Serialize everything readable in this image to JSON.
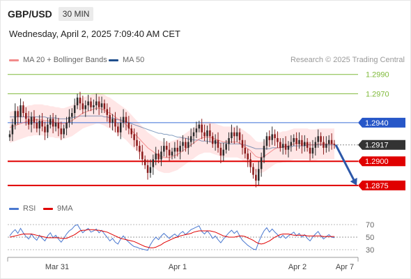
{
  "header": {
    "symbol": "GBP/USD",
    "timeframe": "30 MIN",
    "datetime": "Wednesday, April 2, 2025 7:09:40 AM CET"
  },
  "legend": {
    "ma20": "MA 20 + Bollinger Bands",
    "ma50": "MA 50",
    "rsi": "RSI",
    "rsi_ma": "9MA"
  },
  "copyright": "Research © 2025 Trading Central",
  "colors": {
    "ma20": "#f06060",
    "ma50": "#1f4e8c",
    "bands": "#ffd6d6",
    "up": "#2b2b2b",
    "down": "#8b1a1a",
    "resistance_green": "#7fba3a",
    "resistance_blue": "#3a6fd8",
    "support_red": "#e00000",
    "forecast_arrow": "#2c57a8",
    "current": "#333333"
  },
  "chart_data": [
    {
      "type": "candlestick",
      "title": "GBP/USD 30 MIN",
      "ylim": [
        1.2865,
        1.3005
      ],
      "x_labels": [
        "Mar 31",
        "Apr 1",
        "Apr 2",
        "Apr 7"
      ],
      "levels": [
        {
          "value": 1.299,
          "label": "1.2990",
          "style": "green"
        },
        {
          "value": 1.297,
          "label": "1.2970",
          "style": "green"
        },
        {
          "value": 1.294,
          "label": "1.2940",
          "style": "blue"
        },
        {
          "value": 1.2917,
          "label": "1.2917",
          "style": "current"
        },
        {
          "value": 1.29,
          "label": "1.2900",
          "style": "red"
        },
        {
          "value": 1.2875,
          "label": "1.2875",
          "style": "red"
        }
      ],
      "closes": [
        1.2928,
        1.2938,
        1.2952,
        1.2946,
        1.2958,
        1.295,
        1.2944,
        1.2938,
        1.2946,
        1.294,
        1.2934,
        1.2942,
        1.2936,
        1.293,
        1.2938,
        1.2944,
        1.2936,
        1.294,
        1.2934,
        1.2928,
        1.2934,
        1.294,
        1.2946,
        1.295,
        1.2958,
        1.2966,
        1.296,
        1.2954,
        1.2958,
        1.2962,
        1.2956,
        1.2958,
        1.2962,
        1.2956,
        1.296,
        1.2954,
        1.2948,
        1.294,
        1.2944,
        1.2936,
        1.293,
        1.294,
        1.2946,
        1.294,
        1.2934,
        1.2928,
        1.2922,
        1.2916,
        1.291,
        1.2902,
        1.2896,
        1.2888,
        1.2894,
        1.2902,
        1.2908,
        1.2902,
        1.291,
        1.2916,
        1.2912,
        1.2906,
        1.291,
        1.2914,
        1.291,
        1.2916,
        1.292,
        1.2914,
        1.292,
        1.2926,
        1.293,
        1.2934,
        1.2938,
        1.293,
        1.2926,
        1.2932,
        1.2926,
        1.2918,
        1.2922,
        1.2914,
        1.2906,
        1.2912,
        1.2918,
        1.2924,
        1.293,
        1.2926,
        1.293,
        1.2922,
        1.2914,
        1.2908,
        1.2902,
        1.2894,
        1.2886,
        1.288,
        1.2892,
        1.2904,
        1.2916,
        1.2926,
        1.2922,
        1.2928,
        1.2924,
        1.292,
        1.2914,
        1.2918,
        1.2912,
        1.2916,
        1.292,
        1.2924,
        1.2918,
        1.2922,
        1.2916,
        1.292,
        1.2914,
        1.2908,
        1.2914,
        1.292,
        1.2926,
        1.292,
        1.2914,
        1.2918,
        1.2922,
        1.2918,
        1.2917
      ],
      "ma20": [
        1.2935,
        1.2936,
        1.2937,
        1.2938,
        1.2939,
        1.294,
        1.2941,
        1.2942,
        1.2942,
        1.2943,
        1.2943,
        1.2943,
        1.2943,
        1.2942,
        1.2942,
        1.2941,
        1.2941,
        1.294,
        1.294,
        1.2939,
        1.2939,
        1.294,
        1.2941,
        1.2942,
        1.2944,
        1.2946,
        1.2948,
        1.295,
        1.2951,
        1.2952,
        1.2953,
        1.2954,
        1.2955,
        1.2955,
        1.2954,
        1.2953,
        1.2951,
        1.295,
        1.2948,
        1.2946,
        1.2944,
        1.2942,
        1.294,
        1.2938,
        1.2935,
        1.2932,
        1.2929,
        1.2926,
        1.2923,
        1.292,
        1.2917,
        1.2914,
        1.2912,
        1.291,
        1.2908,
        1.2906,
        1.2905,
        1.2904,
        1.2904,
        1.2904,
        1.2905,
        1.2906,
        1.2907,
        1.2909,
        1.2911,
        1.2913,
        1.2915,
        1.2917,
        1.2919,
        1.2921,
        1.2923,
        1.2924,
        1.2925,
        1.2925,
        1.2925,
        1.2924,
        1.2923,
        1.2922,
        1.2921,
        1.292,
        1.292,
        1.292,
        1.292,
        1.292,
        1.292,
        1.2919,
        1.2917,
        1.2915,
        1.2913,
        1.2911,
        1.2908,
        1.2905,
        1.2904,
        1.2904,
        1.2905,
        1.2907,
        1.2909,
        1.2911,
        1.2913,
        1.2914,
        1.2914,
        1.2915,
        1.2915,
        1.2916,
        1.2917,
        1.2918,
        1.2918,
        1.2918,
        1.2918,
        1.2918,
        1.2918,
        1.2917,
        1.2917,
        1.2917,
        1.2918,
        1.2918,
        1.2918,
        1.2918,
        1.2918,
        1.2918,
        1.2918
      ],
      "ma50": [
        1.2946,
        1.2946,
        1.2946,
        1.2946,
        1.2946,
        1.2946,
        1.2946,
        1.2946,
        1.2946,
        1.2946,
        1.2946,
        1.2946,
        1.2946,
        1.2946,
        1.2945,
        1.2945,
        1.2945,
        1.2945,
        1.2944,
        1.2944,
        1.2944,
        1.2944,
        1.2945,
        1.2945,
        1.2946,
        1.2946,
        1.2947,
        1.2947,
        1.2947,
        1.2947,
        1.2947,
        1.2947,
        1.2947,
        1.2947,
        1.2947,
        1.2946,
        1.2946,
        1.2945,
        1.2945,
        1.2944,
        1.2943,
        1.2943,
        1.2942,
        1.2941,
        1.294,
        1.2939,
        1.2938,
        1.2937,
        1.2936,
        1.2935,
        1.2934,
        1.2933,
        1.2932,
        1.2931,
        1.293,
        1.2929,
        1.2929,
        1.2928,
        1.2928,
        1.2927,
        1.2927,
        1.2926,
        1.2925,
        1.2925,
        1.2924,
        1.2924,
        1.2923,
        1.2923,
        1.2922,
        1.2922,
        1.2922,
        1.2921,
        1.2921,
        1.2921,
        1.292,
        1.292,
        1.292,
        1.2919,
        1.2919,
        1.2919,
        1.2919,
        1.2918,
        1.2918,
        1.2918,
        1.2918,
        1.2918,
        1.2917,
        1.2917,
        1.2916,
        1.2915,
        1.2914,
        1.2913,
        1.2913,
        1.2913,
        1.2913,
        1.2913,
        1.2913,
        1.2914,
        1.2914,
        1.2914,
        1.2914,
        1.2915,
        1.2915,
        1.2915,
        1.2915,
        1.2916,
        1.2916,
        1.2916,
        1.2916,
        1.2916,
        1.2917,
        1.2917,
        1.2917,
        1.2917,
        1.2917,
        1.2917,
        1.2917,
        1.2917,
        1.2917,
        1.2917,
        1.2917
      ],
      "forecast": [
        1.2917,
        1.2875
      ]
    },
    {
      "type": "line",
      "title": "RSI",
      "ylim": [
        25,
        75
      ],
      "y_ticks": [
        70,
        50,
        30
      ],
      "series": [
        {
          "name": "RSI",
          "values": [
            52,
            58,
            62,
            56,
            64,
            57,
            51,
            47,
            55,
            49,
            45,
            53,
            48,
            44,
            52,
            57,
            49,
            53,
            47,
            42,
            48,
            55,
            60,
            63,
            68,
            70,
            63,
            57,
            61,
            64,
            58,
            60,
            63,
            57,
            61,
            55,
            50,
            44,
            48,
            42,
            39,
            47,
            52,
            46,
            42,
            38,
            35,
            34,
            32,
            31,
            30,
            29,
            38,
            45,
            50,
            46,
            52,
            56,
            52,
            48,
            52,
            55,
            51,
            56,
            59,
            54,
            58,
            62,
            64,
            66,
            68,
            59,
            55,
            60,
            55,
            48,
            52,
            46,
            41,
            47,
            52,
            57,
            61,
            56,
            60,
            52,
            45,
            41,
            37,
            34,
            31,
            30,
            42,
            52,
            60,
            65,
            58,
            63,
            58,
            54,
            49,
            53,
            48,
            52,
            55,
            58,
            52,
            56,
            50,
            54,
            48,
            44,
            50,
            55,
            59,
            52,
            47,
            51,
            54,
            50,
            49
          ]
        },
        {
          "name": "9MA",
          "values": [
            50,
            51,
            52,
            53,
            54,
            55,
            55,
            55,
            55,
            54,
            53,
            52,
            51,
            50,
            49,
            49,
            49,
            49,
            49,
            48,
            48,
            48,
            50,
            52,
            54,
            57,
            60,
            61,
            61,
            62,
            62,
            62,
            61,
            61,
            60,
            59,
            58,
            56,
            54,
            52,
            50,
            48,
            47,
            46,
            45,
            44,
            43,
            41,
            39,
            37,
            35,
            34,
            33,
            33,
            34,
            36,
            38,
            41,
            43,
            45,
            47,
            49,
            50,
            52,
            53,
            54,
            55,
            56,
            58,
            59,
            60,
            60,
            60,
            60,
            60,
            59,
            58,
            56,
            54,
            52,
            51,
            50,
            50,
            50,
            51,
            52,
            52,
            51,
            49,
            47,
            45,
            42,
            40,
            39,
            40,
            42,
            44,
            47,
            50,
            52,
            54,
            55,
            55,
            55,
            54,
            53,
            53,
            53,
            53,
            53,
            52,
            52,
            52,
            52,
            52,
            52,
            51,
            51,
            51,
            51,
            51
          ]
        }
      ]
    }
  ]
}
